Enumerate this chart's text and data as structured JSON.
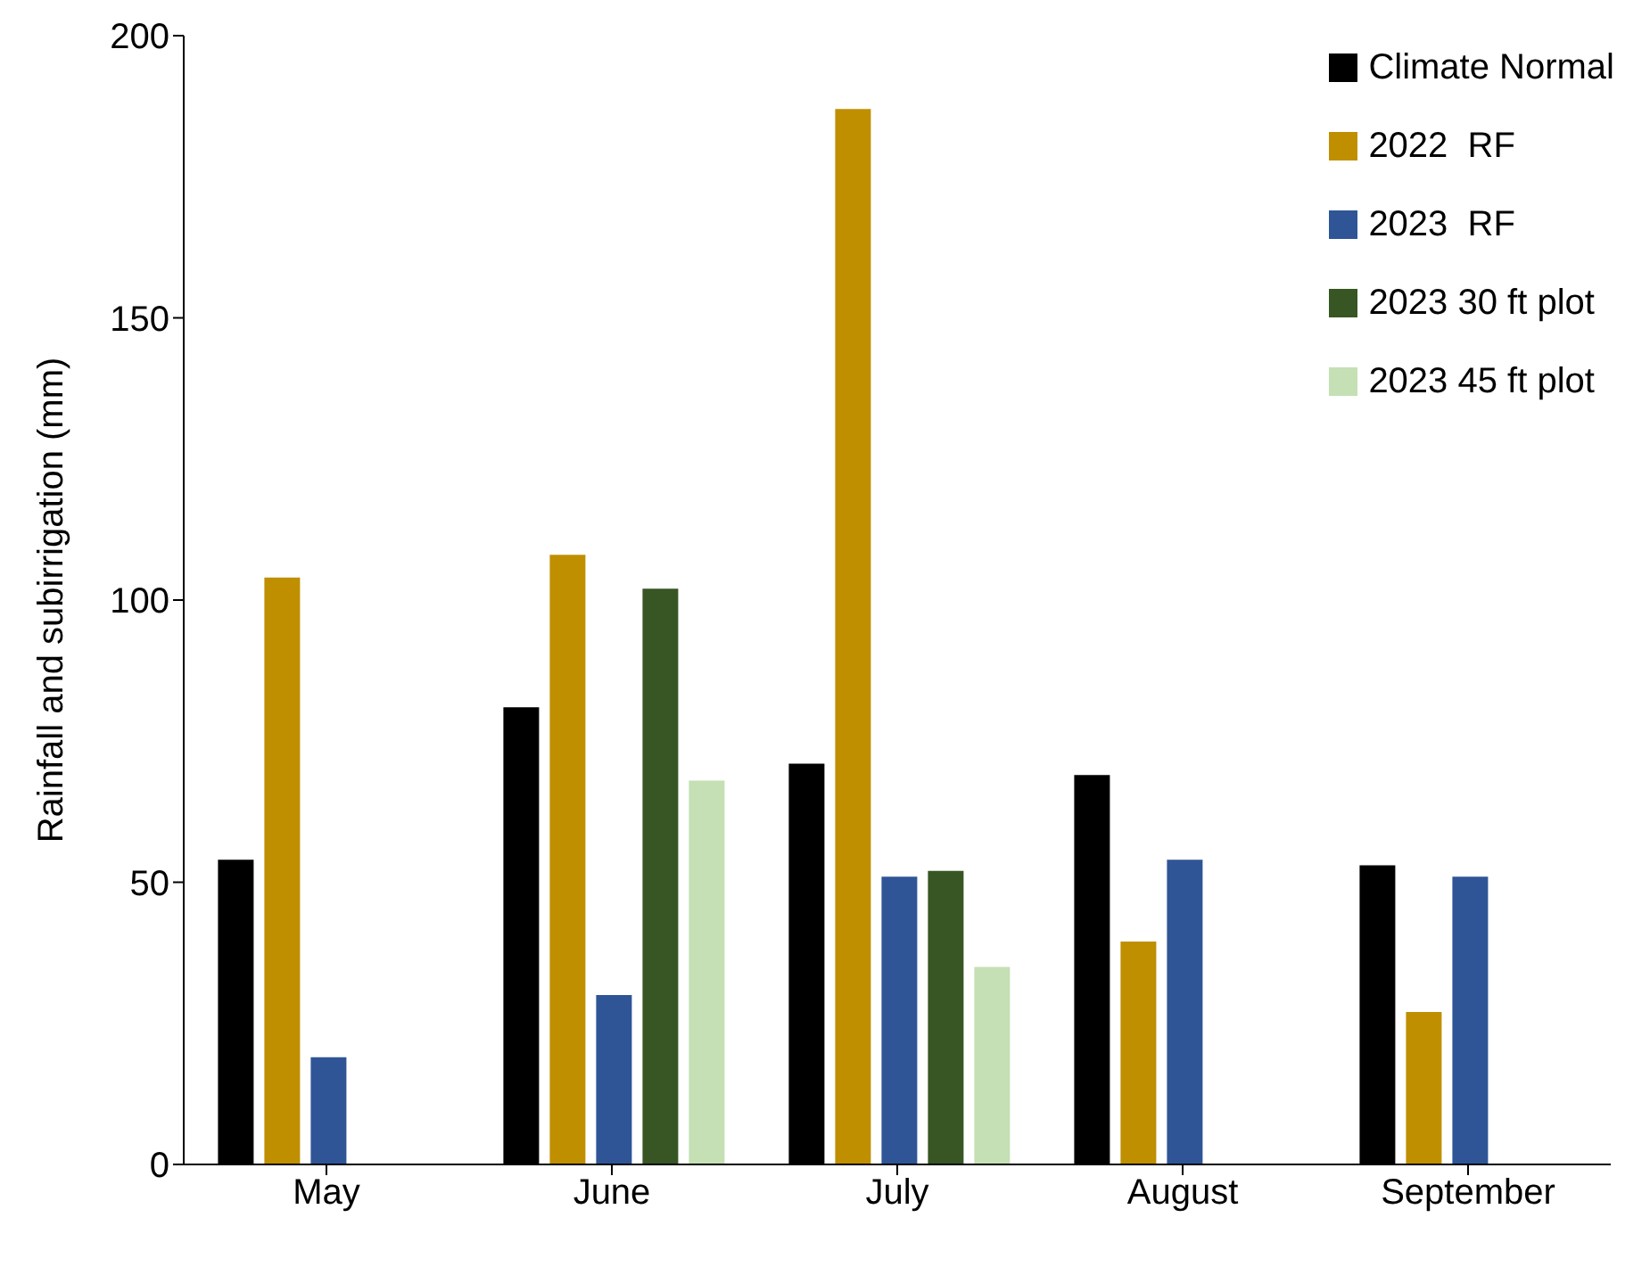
{
  "chart_data": {
    "type": "bar",
    "ylabel": "Rainfall and subirrigation (mm)",
    "categories": [
      "May",
      "June",
      "July",
      "August",
      "September"
    ],
    "series": [
      {
        "name": "Climate Normal",
        "color": "#000000",
        "values": [
          54,
          81,
          71,
          69,
          53
        ]
      },
      {
        "name": "2022  RF",
        "color": "#bf8f00",
        "values": [
          104,
          108,
          187,
          39.5,
          27
        ]
      },
      {
        "name": "2023  RF",
        "color": "#2f5597",
        "values": [
          19,
          30,
          51,
          54,
          51
        ]
      },
      {
        "name": "2023 30 ft plot",
        "color": "#375623",
        "values": [
          null,
          102,
          52,
          null,
          null
        ]
      },
      {
        "name": "2023 45 ft plot",
        "color": "#c5e0b4",
        "values": [
          null,
          68,
          35,
          null,
          null
        ]
      }
    ],
    "ylim": [
      0,
      200
    ],
    "yticks": [
      0,
      50,
      100,
      150,
      200
    ],
    "grid": false,
    "legend": "top right"
  }
}
